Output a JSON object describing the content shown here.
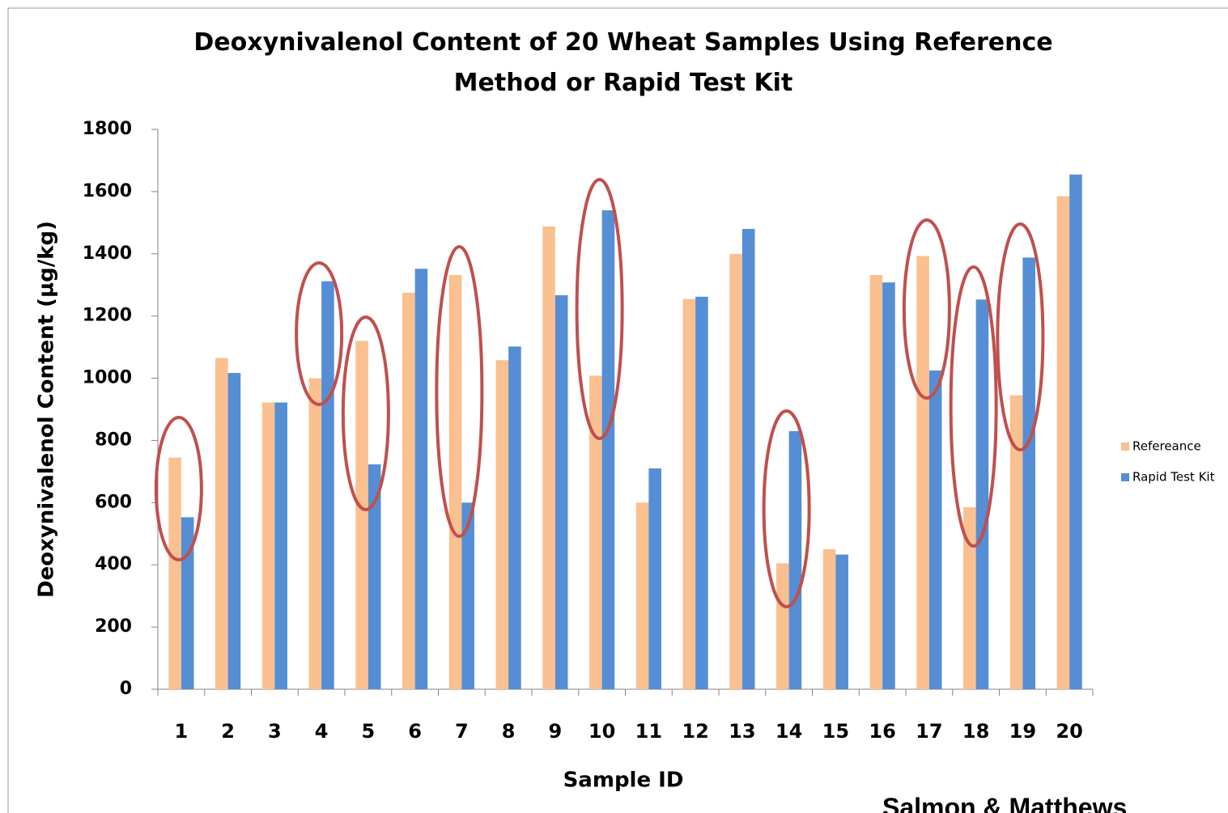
{
  "chart_data": {
    "type": "bar",
    "title": "Deoxynivalenol Content of 20  Wheat Samples Using Reference Method or Rapid Test Kit",
    "x_label": "Sample ID",
    "y_label": "Deoxynivalenol Content (µg/kg)",
    "footer": "Salmon & Matthews",
    "categories": [
      "1",
      "2",
      "3",
      "4",
      "5",
      "6",
      "7",
      "8",
      "9",
      "10",
      "11",
      "12",
      "13",
      "14",
      "15",
      "16",
      "17",
      "18",
      "19",
      "20"
    ],
    "series": [
      {
        "name": "Refereance",
        "color": "#fac090",
        "values": [
          745,
          1065,
          922,
          1000,
          1120,
          1275,
          1332,
          1058,
          1488,
          1008,
          600,
          1255,
          1400,
          405,
          450,
          1332,
          1393,
          585,
          945,
          1585
        ]
      },
      {
        "name": "Rapid Test Kit",
        "color": "#558ed5",
        "values": [
          553,
          1017,
          922,
          1312,
          723,
          1352,
          600,
          1102,
          1267,
          1540,
          710,
          1262,
          1480,
          830,
          433,
          1308,
          1025,
          1253,
          1388,
          1655
        ]
      }
    ],
    "ylim": [
      0,
      1800
    ],
    "yticks": [
      0,
      200,
      400,
      600,
      800,
      1000,
      1200,
      1400,
      1600,
      1800
    ],
    "legend": "right"
  }
}
